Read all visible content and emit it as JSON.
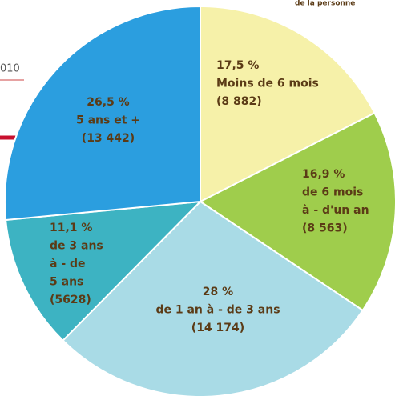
{
  "chart_data": {
    "type": "pie",
    "annotations": [
      "de la personne",
      "010"
    ],
    "categories": [
      [
        "Moins de 6 mois"
      ],
      [
        "de 6 mois",
        "à - d'un an"
      ],
      [
        "de 1 an à - de 3 ans"
      ],
      [
        "de 3 ans",
        "à - de",
        "5 ans"
      ],
      [
        "5 ans et +"
      ]
    ],
    "values": [
      17.5,
      16.9,
      28,
      11.1,
      26.5
    ],
    "value_labels": [
      "17,5 %",
      "16,9 %",
      "28 %",
      "11,1 %",
      "26,5 %"
    ],
    "counts": [
      8882,
      8563,
      14174,
      5628,
      13442
    ],
    "count_labels": [
      "(8 882)",
      "(8 563)",
      "(14 174)",
      "(5628)",
      "(13 442)"
    ],
    "colors": [
      "#f6f1a9",
      "#9fcd4c",
      "#a9dbe6",
      "#3db3c2",
      "#2b9edf"
    ]
  }
}
